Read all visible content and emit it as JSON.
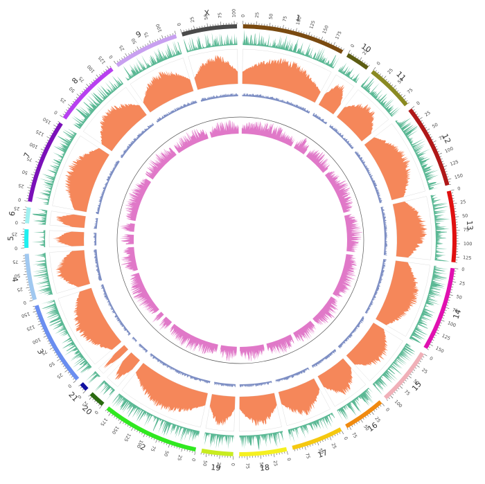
{
  "chromosomes": [
    {
      "label": "1",
      "length": 195,
      "color": "#7a4a10",
      "ticks": [
        0,
        25,
        50,
        75,
        100,
        125,
        150,
        175
      ]
    },
    {
      "label": "10",
      "length": 45,
      "color": "#5c5c12",
      "ticks": [
        0,
        25
      ]
    },
    {
      "label": "11",
      "length": 90,
      "color": "#8a8a22",
      "ticks": [
        0,
        25,
        50,
        75
      ]
    },
    {
      "label": "12",
      "length": 160,
      "color": "#b01818",
      "ticks": [
        0,
        25,
        50,
        75,
        100,
        125,
        150
      ]
    },
    {
      "label": "13",
      "length": 135,
      "color": "#e01010",
      "ticks": [
        0,
        25,
        50,
        75,
        100,
        125
      ]
    },
    {
      "label": "14",
      "length": 160,
      "color": "#e010b0",
      "ticks": [
        0,
        25,
        50,
        75,
        100,
        125,
        150
      ]
    },
    {
      "label": "15",
      "length": 110,
      "color": "#f0b0b8",
      "ticks": [
        0,
        25,
        50,
        75,
        100
      ]
    },
    {
      "label": "16",
      "length": 80,
      "color": "#f08a10",
      "ticks": [
        0,
        25,
        50,
        75
      ]
    },
    {
      "label": "17",
      "length": 98,
      "color": "#f5c810",
      "ticks": [
        0,
        25,
        50,
        75
      ]
    },
    {
      "label": "18",
      "length": 90,
      "color": "#f5f020",
      "ticks": [
        0,
        25,
        50,
        75
      ]
    },
    {
      "label": "19",
      "length": 60,
      "color": "#c8ec20",
      "ticks": [
        0,
        25,
        50
      ]
    },
    {
      "label": "2",
      "length": 185,
      "color": "#30e820",
      "ticks": [
        0,
        25,
        50,
        75,
        100,
        125,
        150,
        175
      ]
    },
    {
      "label": "20",
      "length": 30,
      "color": "#2a6a10",
      "ticks": [
        0,
        25
      ]
    },
    {
      "label": "21",
      "length": 15,
      "color": "#1010a0",
      "ticks": [
        0
      ]
    },
    {
      "label": "3",
      "length": 160,
      "color": "#6a8ef0",
      "ticks": [
        0,
        25,
        50,
        75,
        100,
        125,
        150
      ]
    },
    {
      "label": "4",
      "length": 88,
      "color": "#a0c8f0",
      "ticks": [
        0,
        25,
        50,
        75
      ]
    },
    {
      "label": "5",
      "length": 35,
      "color": "#20f0f0",
      "ticks": [
        0,
        25
      ]
    },
    {
      "label": "6",
      "length": 30,
      "color": "#a0f0f0",
      "ticks": [
        0,
        25
      ]
    },
    {
      "label": "7",
      "length": 160,
      "color": "#7a10b8",
      "ticks": [
        0,
        25,
        50,
        75,
        100,
        125,
        150
      ]
    },
    {
      "label": "8",
      "length": 130,
      "color": "#b840f0",
      "ticks": [
        0,
        25,
        50,
        75,
        100,
        125
      ]
    },
    {
      "label": "9",
      "length": 125,
      "color": "#c8a0f0",
      "ticks": [
        0,
        25,
        50,
        75,
        100
      ]
    },
    {
      "label": "X",
      "length": 105,
      "color": "#4a4a4a",
      "ticks": [
        0,
        25,
        50,
        75,
        100
      ]
    }
  ],
  "tracks": [
    {
      "name": "outer-histogram",
      "color": "#5ab894"
    },
    {
      "name": "orange-area",
      "color": "#f5875a"
    },
    {
      "name": "blue-area",
      "color": "#7e8fc4"
    },
    {
      "name": "pink-area",
      "color": "#e078c8"
    }
  ],
  "innermost_ring_color": "#555555"
}
